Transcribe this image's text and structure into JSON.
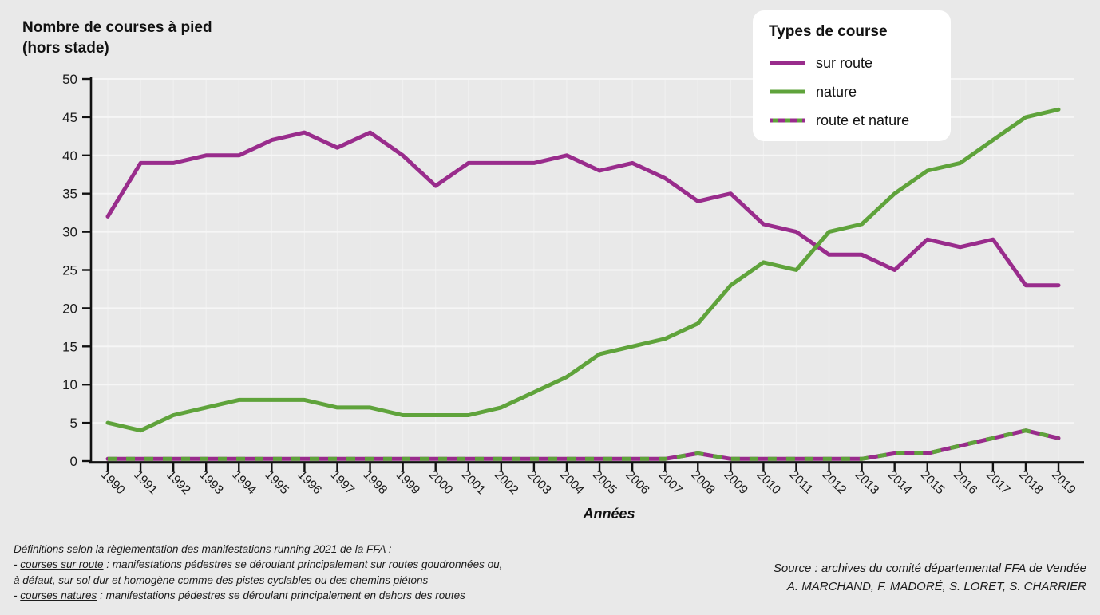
{
  "header": {
    "title_line1": "Nombre de courses à pied",
    "title_line2": "(hors stade)"
  },
  "legend": {
    "title": "Types de course",
    "items": [
      {
        "label": "sur route",
        "style": "solid",
        "color": "#992c8c"
      },
      {
        "label": "nature",
        "style": "solid",
        "color": "#5fa33b"
      },
      {
        "label": "route et nature",
        "style": "dashed",
        "color": "#992c8c",
        "dash_color": "#5fa33b"
      }
    ]
  },
  "chart_data": {
    "type": "line",
    "title": "Nombre de courses à pied (hors stade)",
    "xlabel": "Années",
    "ylabel": "Nombre de courses à pied (hors stade)",
    "ylim": [
      0,
      50
    ],
    "yticks": [
      0,
      5,
      10,
      15,
      20,
      25,
      30,
      35,
      40,
      45,
      50
    ],
    "grid": true,
    "legend_position": "top-right",
    "plot_bg": "#e9e9e9",
    "x": [
      1990,
      1991,
      1992,
      1993,
      1994,
      1995,
      1996,
      1997,
      1998,
      1999,
      2000,
      2001,
      2002,
      2003,
      2004,
      2005,
      2006,
      2007,
      2008,
      2009,
      2010,
      2011,
      2012,
      2013,
      2014,
      2015,
      2016,
      2017,
      2018,
      2019
    ],
    "series": [
      {
        "name": "sur route",
        "color": "#992c8c",
        "values": [
          32,
          39,
          39,
          40,
          40,
          42,
          43,
          41,
          43,
          40,
          36,
          39,
          39,
          39,
          40,
          38,
          39,
          37,
          34,
          35,
          31,
          30,
          27,
          27,
          25,
          29,
          28,
          29,
          23,
          23
        ]
      },
      {
        "name": "nature",
        "color": "#5fa33b",
        "values": [
          5,
          4,
          6,
          7,
          8,
          8,
          8,
          7,
          7,
          6,
          6,
          6,
          7,
          9,
          11,
          14,
          15,
          16,
          18,
          23,
          26,
          25,
          30,
          31,
          35,
          38,
          39,
          42,
          45,
          46
        ]
      },
      {
        "name": "route et nature",
        "color": "#992c8c",
        "dash_overlay_color": "#5fa33b",
        "values": [
          0,
          0,
          0,
          0,
          0,
          0,
          0,
          0,
          0,
          0,
          0,
          0,
          0,
          0,
          0,
          0,
          0,
          0,
          1,
          0,
          0,
          0,
          0,
          0,
          1,
          1,
          2,
          3,
          4,
          3
        ]
      }
    ]
  },
  "footnote": {
    "line1": "Définitions selon la règlementation des manifestations running 2021 de la FFA :",
    "line2_prefix": "- ",
    "line2_term": "courses sur route",
    "line2_rest": " : manifestations pédestres se déroulant principalement sur routes goudronnées ou,",
    "line3": "à défaut, sur sol dur et homogène comme des pistes cyclables ou des chemins piétons",
    "line4_prefix": "- ",
    "line4_term": "courses natures",
    "line4_rest": " : manifestations pédestres se déroulant principalement en dehors des routes"
  },
  "source": {
    "line1": "Source : archives du comité départemental FFA de Vendée",
    "line2": "A. MARCHAND, F. MADORÉ, S. LORET, S. CHARRIER"
  }
}
